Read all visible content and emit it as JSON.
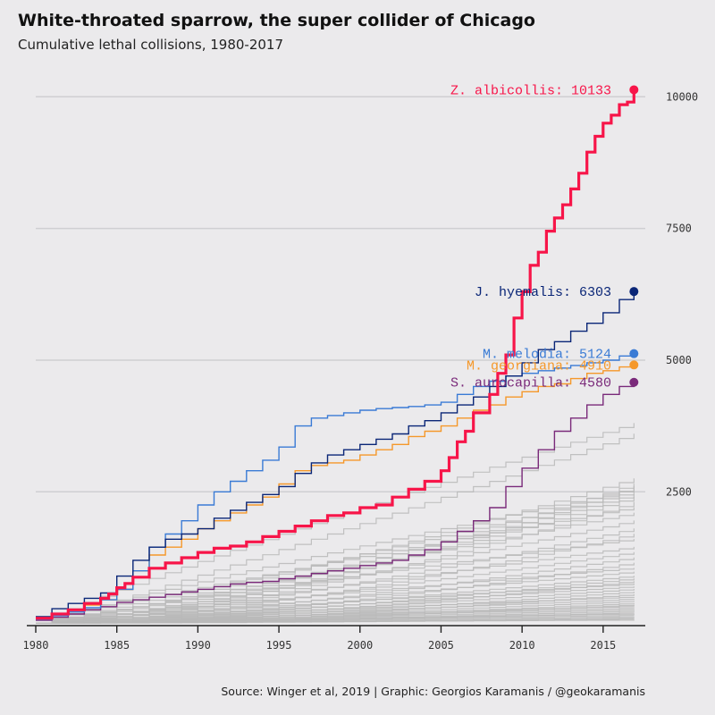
{
  "chart_data": {
    "type": "line",
    "title": "White-throated sparrow, the super collider of Chicago",
    "subtitle": "Cumulative lethal collisions, 1980-2017",
    "caption": "Source: Winger et al, 2019 | Graphic: Georgios Karamanis / @geokaramanis",
    "xlim": [
      1980,
      2017.6
    ],
    "ylim": [
      -40,
      10650
    ],
    "x_ticks": [
      1980,
      1985,
      1990,
      1995,
      2000,
      2005,
      2010,
      2015
    ],
    "y_ticks": [
      2500,
      5000,
      7500,
      10000
    ],
    "grid": true,
    "highlighted_series": [
      {
        "name": "Z. albicollis",
        "label": "Z. albicollis: 10133",
        "color": "#f71549",
        "x": [
          1980,
          1981,
          1982,
          1983,
          1984,
          1984.5,
          1985,
          1985.5,
          1986,
          1987,
          1988,
          1989,
          1990,
          1991,
          1992,
          1993,
          1994,
          1995,
          1996,
          1997,
          1998,
          1999,
          2000,
          2001,
          2002,
          2003,
          2004,
          2005,
          2005.5,
          2006,
          2006.5,
          2007,
          2008,
          2008.5,
          2009,
          2009.5,
          2010,
          2010.5,
          2011,
          2011.5,
          2012,
          2012.5,
          2013,
          2013.5,
          2014,
          2014.5,
          2015,
          2015.5,
          2016,
          2016.5,
          2016.9
        ],
        "values": [
          100,
          180,
          260,
          380,
          480,
          560,
          680,
          760,
          880,
          1050,
          1150,
          1250,
          1350,
          1430,
          1470,
          1550,
          1650,
          1750,
          1850,
          1950,
          2050,
          2100,
          2200,
          2250,
          2400,
          2550,
          2700,
          2900,
          3150,
          3450,
          3650,
          4000,
          4350,
          4750,
          5100,
          5800,
          6300,
          6800,
          7050,
          7450,
          7700,
          7950,
          8250,
          8550,
          8950,
          9250,
          9500,
          9650,
          9850,
          9900,
          10133
        ]
      },
      {
        "name": "J. hyemalis",
        "label": "J. hyemalis: 6303",
        "color": "#0a2677",
        "x": [
          1980,
          1981,
          1982,
          1983,
          1984,
          1985,
          1986,
          1987,
          1988,
          1989,
          1990,
          1991,
          1992,
          1993,
          1994,
          1995,
          1996,
          1997,
          1998,
          1999,
          2000,
          2001,
          2002,
          2003,
          2004,
          2005,
          2006,
          2007,
          2008,
          2009,
          2010,
          2011,
          2012,
          2013,
          2014,
          2015,
          2016,
          2016.9
        ],
        "values": [
          130,
          280,
          380,
          480,
          580,
          900,
          1200,
          1450,
          1600,
          1700,
          1800,
          2000,
          2150,
          2300,
          2450,
          2600,
          2850,
          3050,
          3200,
          3300,
          3400,
          3500,
          3600,
          3750,
          3850,
          4000,
          4150,
          4300,
          4500,
          4700,
          4950,
          5200,
          5350,
          5550,
          5700,
          5900,
          6150,
          6303
        ]
      },
      {
        "name": "M. melodia",
        "label": "M. melodia: 5124",
        "color": "#3a7bd5",
        "x": [
          1980,
          1981,
          1982,
          1983,
          1984,
          1985,
          1986,
          1987,
          1988,
          1989,
          1990,
          1991,
          1992,
          1993,
          1994,
          1995,
          1996,
          1997,
          1998,
          1999,
          2000,
          2001,
          2002,
          2003,
          2004,
          2005,
          2006,
          2007,
          2008,
          2009,
          2010,
          2011,
          2012,
          2013,
          2014,
          2015,
          2016,
          2016.9
        ],
        "values": [
          80,
          150,
          220,
          300,
          450,
          650,
          1000,
          1450,
          1700,
          1950,
          2250,
          2500,
          2700,
          2900,
          3100,
          3350,
          3750,
          3900,
          3950,
          4000,
          4050,
          4080,
          4100,
          4120,
          4150,
          4200,
          4350,
          4500,
          4600,
          4700,
          4750,
          4800,
          4850,
          4900,
          4950,
          5000,
          5080,
          5124
        ]
      },
      {
        "name": "M. georgiana",
        "label": "M. georgiana: 4910",
        "color": "#f5982a",
        "x": [
          1980,
          1981,
          1982,
          1983,
          1984,
          1985,
          1986,
          1987,
          1988,
          1989,
          1990,
          1991,
          1992,
          1993,
          1994,
          1995,
          1996,
          1997,
          1998,
          1999,
          2000,
          2001,
          2002,
          2003,
          2004,
          2005,
          2006,
          2007,
          2008,
          2009,
          2010,
          2011,
          2012,
          2013,
          2014,
          2015,
          2016,
          2016.9
        ],
        "values": [
          90,
          160,
          250,
          350,
          450,
          650,
          1000,
          1300,
          1450,
          1600,
          1800,
          1950,
          2100,
          2250,
          2400,
          2650,
          2900,
          3000,
          3050,
          3100,
          3200,
          3300,
          3400,
          3550,
          3650,
          3750,
          3900,
          4050,
          4150,
          4300,
          4400,
          4500,
          4550,
          4650,
          4750,
          4800,
          4870,
          4910
        ]
      },
      {
        "name": "S. aurocapilla",
        "label": "S. aurocapilla: 4580",
        "color": "#7a2a7a",
        "x": [
          1980,
          1981,
          1982,
          1983,
          1984,
          1985,
          1986,
          1987,
          1988,
          1989,
          1990,
          1991,
          1992,
          1993,
          1994,
          1995,
          1996,
          1997,
          1998,
          1999,
          2000,
          2001,
          2002,
          2003,
          2004,
          2005,
          2006,
          2007,
          2008,
          2009,
          2010,
          2011,
          2012,
          2013,
          2014,
          2015,
          2016,
          2016.9
        ],
        "values": [
          60,
          120,
          180,
          260,
          320,
          400,
          450,
          500,
          550,
          600,
          650,
          700,
          750,
          780,
          800,
          850,
          900,
          950,
          1000,
          1050,
          1100,
          1150,
          1200,
          1300,
          1400,
          1550,
          1750,
          1950,
          2200,
          2600,
          2950,
          3300,
          3650,
          3900,
          4150,
          4350,
          4500,
          4580
        ]
      }
    ],
    "background_series_finals": [
      3800,
      3600,
      2750,
      2650,
      2600,
      2550,
      2500,
      2450,
      2400,
      2300,
      2200,
      2100,
      1950,
      1800,
      1700,
      1600,
      1450,
      1350,
      1250,
      1150,
      1050,
      980,
      900,
      850,
      800,
      750,
      700,
      650,
      600,
      550,
      500,
      460,
      420,
      380,
      350,
      320,
      290,
      260,
      230,
      200,
      175,
      150,
      125,
      100,
      80,
      60
    ],
    "background_color": "#b8b8b8"
  }
}
